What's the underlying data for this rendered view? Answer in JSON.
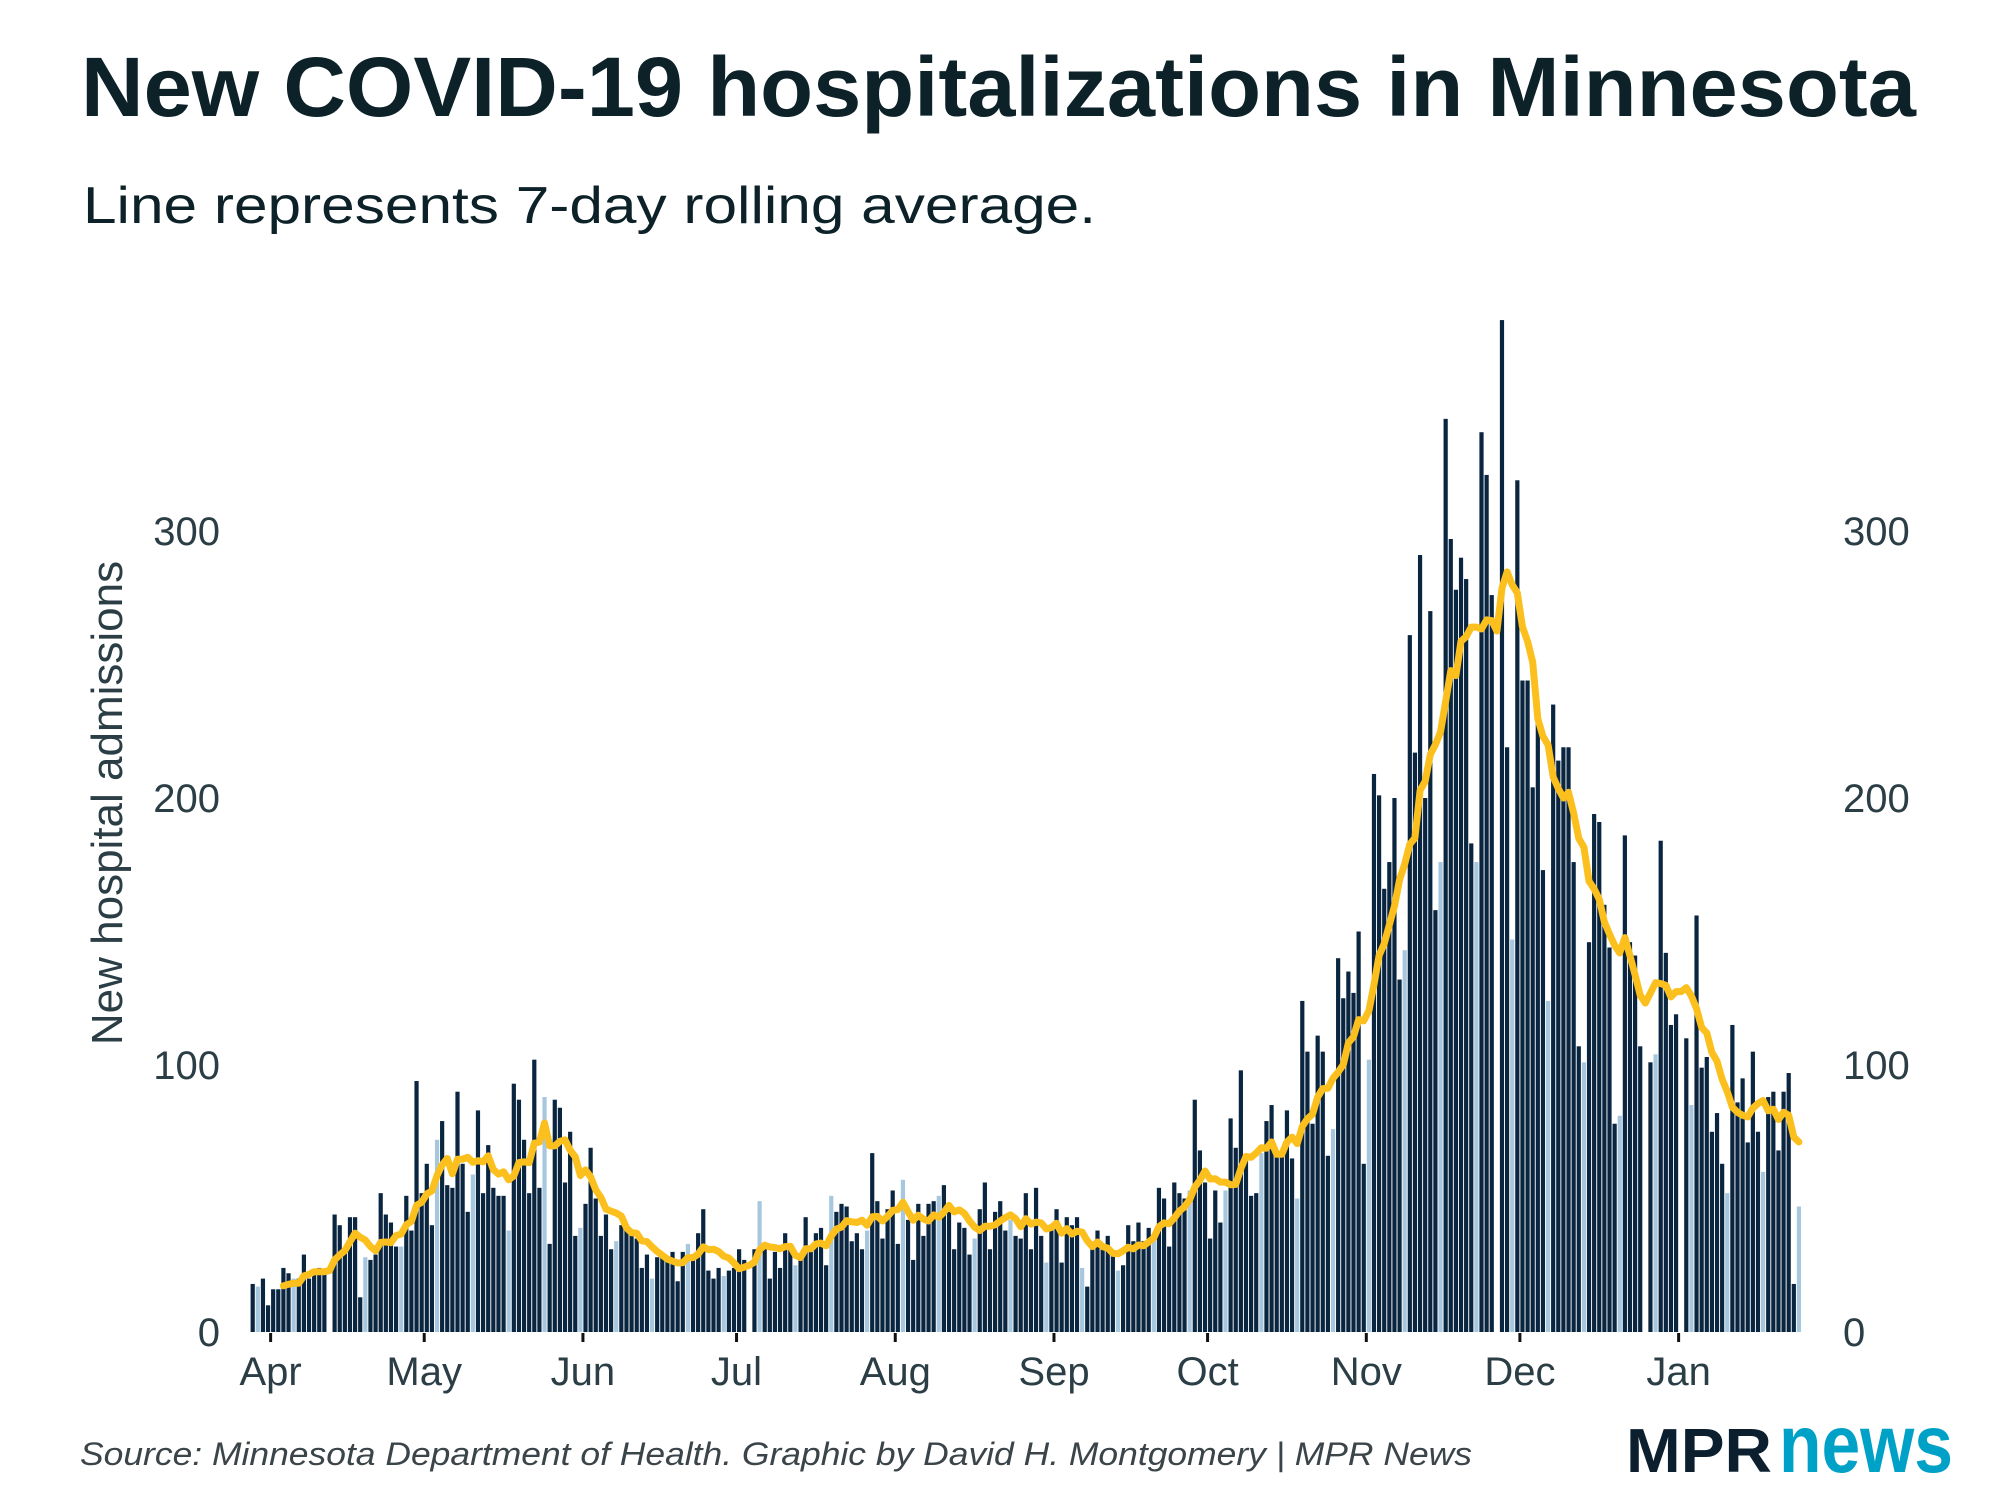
{
  "title": "New COVID-19 hospitalizations in Minnesota",
  "subtitle": "Line represents 7-day rolling average.",
  "source": "Source: Minnesota Department of Health. Graphic by David H. Montgomery | MPR News",
  "logo": {
    "part1": "MPR",
    "part2": "news",
    "color1": "#0b1f2e",
    "color2": "#00a1c6"
  },
  "chart_data": {
    "type": "bar",
    "ylabel": "New hospital admissions",
    "xlabel": "",
    "ylim": [
      0,
      380
    ],
    "y_ticks": [
      0,
      100,
      200,
      300
    ],
    "y_tick_labels": [
      "0",
      "100",
      "200",
      "300"
    ],
    "y_axis_sides": [
      "left",
      "right"
    ],
    "x_tick_labels": [
      "Apr",
      "May",
      "Jun",
      "Jul",
      "Aug",
      "Sep",
      "Oct",
      "Nov",
      "Dec",
      "Jan"
    ],
    "x_tick_dates": [
      "2020-04-01",
      "2020-05-01",
      "2020-06-01",
      "2020-07-01",
      "2020-08-01",
      "2020-09-01",
      "2020-10-01",
      "2020-11-01",
      "2020-12-01",
      "2021-01-01"
    ],
    "x_range": [
      "2020-03-28",
      "2021-01-24"
    ],
    "x_interval": "day",
    "grid": false,
    "colors": {
      "bar": "#0a2540",
      "bar_sunday": "#a7c7df",
      "line": "#fbbf1e"
    },
    "line": {
      "type": "rolling_average",
      "window_days": 7
    },
    "values": [
      18,
      17,
      20,
      10,
      16,
      16,
      24,
      22,
      20,
      20,
      29,
      20,
      23,
      24,
      22,
      null,
      44,
      40,
      30,
      43,
      43,
      13,
      28,
      27,
      29,
      52,
      44,
      41,
      32,
      32,
      51,
      38,
      94,
      52,
      63,
      40,
      72,
      79,
      55,
      54,
      90,
      63,
      45,
      59,
      83,
      52,
      70,
      54,
      51,
      51,
      38,
      93,
      87,
      72,
      52,
      102,
      54,
      88,
      33,
      87,
      84,
      56,
      75,
      36,
      39,
      48,
      69,
      50,
      36,
      44,
      31,
      34,
      40,
      38,
      37,
      35,
      24,
      29,
      20,
      28,
      28,
      27,
      30,
      19,
      30,
      33,
      28,
      37,
      46,
      23,
      20,
      24,
      21,
      23,
      24,
      31,
      27,
      null,
      31,
      49,
      33,
      20,
      30,
      24,
      37,
      32,
      25,
      27,
      43,
      30,
      37,
      39,
      25,
      51,
      45,
      48,
      47,
      34,
      37,
      31,
      38,
      67,
      49,
      35,
      46,
      53,
      33,
      57,
      42,
      27,
      48,
      36,
      48,
      49,
      51,
      55,
      45,
      31,
      41,
      39,
      29,
      35,
      46,
      56,
      31,
      45,
      49,
      38,
      42,
      36,
      35,
      52,
      31,
      54,
      36,
      26,
      40,
      46,
      26,
      43,
      40,
      43,
      24,
      17,
      31,
      38,
      31,
      36,
      29,
      23,
      25,
      40,
      34,
      41,
      34,
      39,
      34,
      54,
      50,
      32,
      56,
      52,
      50,
      53,
      87,
      68,
      56,
      35,
      53,
      41,
      53,
      80,
      69,
      98,
      66,
      51,
      52,
      67,
      79,
      85,
      66,
      66,
      83,
      65,
      50,
      124,
      105,
      78,
      111,
      105,
      66,
      76,
      140,
      125,
      135,
      127,
      150,
      63,
      102,
      209,
      201,
      166,
      176,
      200,
      132,
      143,
      261,
      217,
      291,
      200,
      270,
      158,
      176,
      342,
      297,
      278,
      290,
      282,
      183,
      176,
      337,
      321,
      276,
      null,
      379,
      219,
      147,
      319,
      244,
      244,
      204,
      231,
      173,
      124,
      235,
      214,
      219,
      219,
      176,
      107,
      101,
      146,
      194,
      191,
      160,
      144,
      78,
      81,
      186,
      146,
      141,
      107,
      null,
      101,
      104,
      184,
      142,
      115,
      119,
      null,
      110,
      85,
      156,
      99,
      103,
      75,
      82,
      63,
      52,
      115,
      86,
      95,
      71,
      105,
      75,
      60,
      88,
      90,
      68,
      90,
      97,
      18,
      47
    ]
  }
}
